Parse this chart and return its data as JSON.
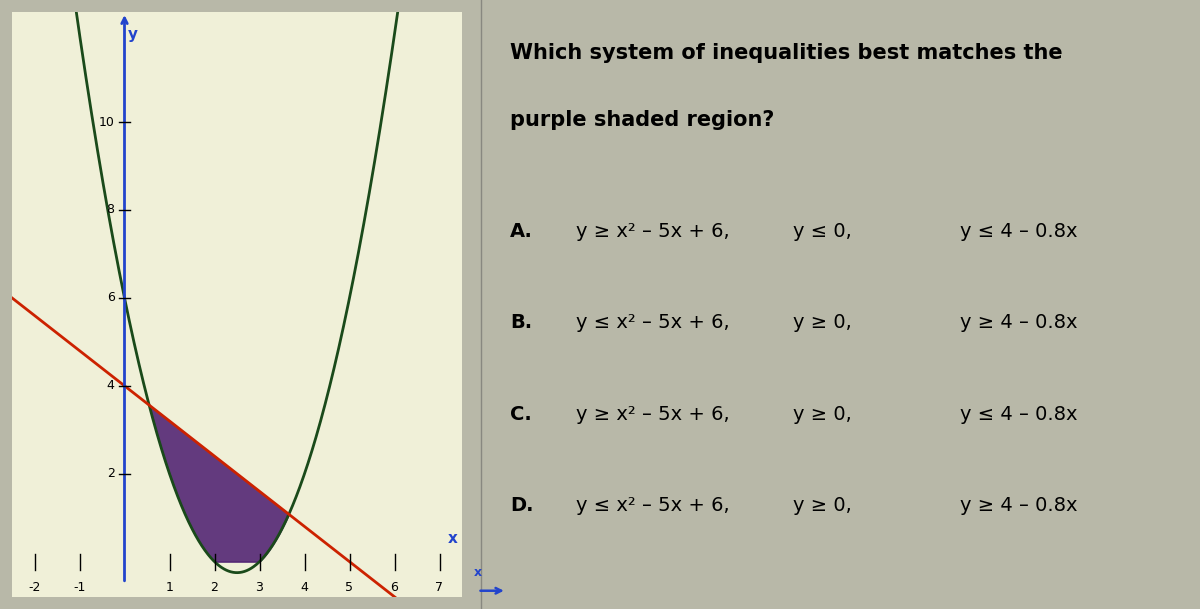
{
  "question_options": [
    {
      "label": "A.",
      "col1": "y ≥ x² – 5x + 6,",
      "col2": "y ≤ 0,",
      "col3": "y ≤ 4 – 0.8x"
    },
    {
      "label": "B.",
      "col1": "y ≤ x² – 5x + 6,",
      "col2": "y ≥ 0,",
      "col3": "y ≥ 4 – 0.8x"
    },
    {
      "label": "C.",
      "col1": "y ≥ x² – 5x + 6,",
      "col2": "y ≥ 0,",
      "col3": "y ≤ 4 – 0.8x"
    },
    {
      "label": "D.",
      "col1": "y ≤ x² – 5x + 6,",
      "col2": "y ≥ 0,",
      "col3": "y ≥ 4 – 0.8x"
    }
  ],
  "graph_xlim": [
    -2.5,
    7.5
  ],
  "graph_ylim": [
    -0.8,
    12.5
  ],
  "graph_xticks": [
    -2,
    -1,
    1,
    2,
    3,
    4,
    5,
    6,
    7
  ],
  "graph_yticks": [
    2,
    4,
    6,
    8,
    10
  ],
  "parabola_color": "#1a4a1a",
  "line_color": "#cc2200",
  "xaxis_color": "#2244cc",
  "yaxis_color": "#2244cc",
  "shade_color": "#4a1a6e",
  "shade_alpha": 0.85,
  "graph_bg": "#f0f0d8",
  "right_bg": "#d0cfc0",
  "fig_bg": "#b8b8a8",
  "title_line1": "Which system of inequalities best matches the",
  "title_line2": "purple shaded region?",
  "title_fontsize": 15,
  "option_fontsize": 14,
  "tick_fontsize": 9,
  "ylabel_text": "y",
  "xlabel_text": "x"
}
